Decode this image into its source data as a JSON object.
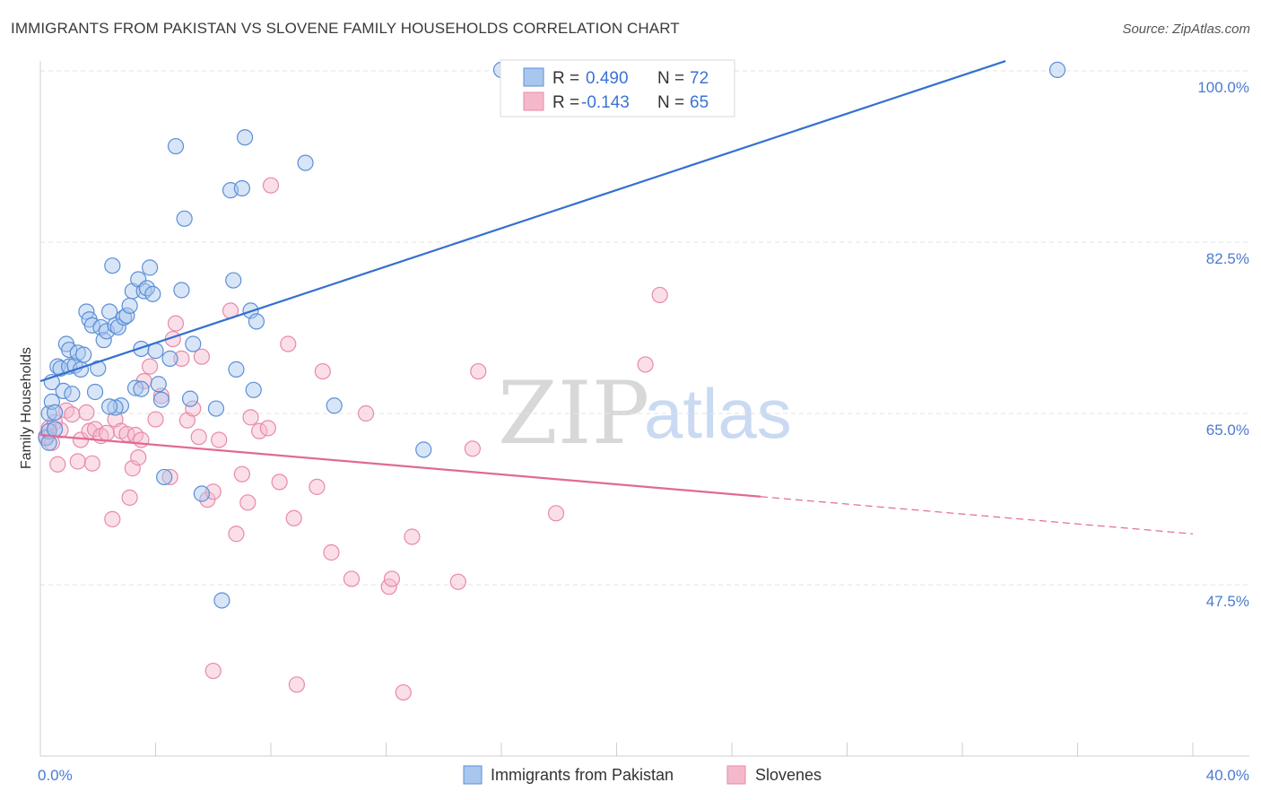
{
  "title": "IMMIGRANTS FROM PAKISTAN VS SLOVENE FAMILY HOUSEHOLDS CORRELATION CHART",
  "source": "Source: ZipAtlas.com",
  "watermark": {
    "zip": "ZIP",
    "atlas": "atlas"
  },
  "colors": {
    "blue_fill": "#a9c6ee",
    "blue_stroke": "#5b8fd8",
    "blue_line": "#3370d0",
    "pink_fill": "#f5b8cb",
    "pink_stroke": "#e88aa8",
    "pink_line": "#e06a94",
    "tick_text": "#4a7bd0",
    "grid": "#e3e3e3"
  },
  "legend": {
    "rows": [
      {
        "r_label": "R =",
        "r_value": "0.490",
        "n_label": "N =",
        "n_value": "72"
      },
      {
        "r_label": "R =",
        "r_value": "-0.143",
        "n_label": "N =",
        "n_value": "65"
      }
    ]
  },
  "bottom_legend": [
    "Immigrants from Pakistan",
    "Slovenes"
  ],
  "chart_data": {
    "type": "scatter",
    "xlabel": "",
    "ylabel": "Family Households",
    "xlim": [
      0,
      40
    ],
    "ylim": [
      33,
      102
    ],
    "x_tick_labels": [
      "0.0%",
      "40.0%"
    ],
    "y_ticks": [
      47.5,
      65.0,
      82.5,
      100.0
    ],
    "y_tick_labels": [
      "47.5%",
      "65.0%",
      "82.5%",
      "100.0%"
    ],
    "grid": true,
    "series": [
      {
        "name": "Immigrants from Pakistan",
        "r": 0.49,
        "n": 72,
        "trend": {
          "x": [
            0.0,
            33.5
          ],
          "y": [
            68.3,
            101.0
          ]
        },
        "points": [
          [
            0.2,
            62.5
          ],
          [
            0.3,
            63.2
          ],
          [
            0.3,
            65.0
          ],
          [
            0.4,
            66.2
          ],
          [
            0.4,
            68.2
          ],
          [
            0.5,
            63.4
          ],
          [
            0.6,
            69.8
          ],
          [
            0.7,
            69.6
          ],
          [
            0.8,
            67.3
          ],
          [
            0.9,
            72.1
          ],
          [
            1.0,
            71.5
          ],
          [
            1.0,
            69.8
          ],
          [
            1.1,
            67.0
          ],
          [
            1.2,
            69.9
          ],
          [
            1.3,
            71.2
          ],
          [
            1.4,
            69.5
          ],
          [
            1.5,
            71.0
          ],
          [
            1.6,
            75.4
          ],
          [
            1.7,
            74.6
          ],
          [
            1.8,
            74.0
          ],
          [
            1.9,
            67.2
          ],
          [
            2.0,
            69.6
          ],
          [
            2.1,
            73.8
          ],
          [
            2.2,
            72.5
          ],
          [
            2.3,
            73.4
          ],
          [
            2.4,
            75.4
          ],
          [
            2.5,
            80.1
          ],
          [
            2.6,
            74.0
          ],
          [
            2.7,
            73.8
          ],
          [
            2.8,
            65.8
          ],
          [
            2.6,
            65.6
          ],
          [
            2.9,
            74.8
          ],
          [
            3.0,
            75.0
          ],
          [
            3.1,
            76.0
          ],
          [
            3.2,
            77.5
          ],
          [
            3.3,
            67.6
          ],
          [
            3.4,
            78.7
          ],
          [
            3.5,
            71.6
          ],
          [
            3.5,
            67.5
          ],
          [
            3.6,
            77.5
          ],
          [
            3.7,
            77.8
          ],
          [
            3.8,
            79.9
          ],
          [
            3.9,
            77.2
          ],
          [
            4.0,
            71.4
          ],
          [
            4.1,
            68.0
          ],
          [
            4.2,
            66.4
          ],
          [
            4.3,
            58.5
          ],
          [
            4.5,
            70.6
          ],
          [
            4.7,
            92.3
          ],
          [
            4.9,
            77.6
          ],
          [
            5.0,
            84.9
          ],
          [
            5.2,
            66.5
          ],
          [
            5.3,
            72.1
          ],
          [
            5.6,
            56.8
          ],
          [
            6.3,
            45.9
          ],
          [
            6.6,
            87.8
          ],
          [
            6.7,
            78.6
          ],
          [
            6.8,
            69.5
          ],
          [
            7.0,
            88.0
          ],
          [
            7.1,
            93.2
          ],
          [
            7.3,
            75.5
          ],
          [
            7.4,
            67.4
          ],
          [
            7.5,
            74.4
          ],
          [
            9.2,
            90.6
          ],
          [
            10.2,
            65.8
          ],
          [
            13.3,
            61.3
          ],
          [
            16.0,
            100.1
          ],
          [
            35.3,
            100.1
          ],
          [
            0.3,
            62.0
          ],
          [
            0.5,
            65.1
          ],
          [
            2.4,
            65.7
          ],
          [
            6.1,
            65.5
          ]
        ]
      },
      {
        "name": "Slovenes",
        "r": -0.143,
        "n": 65,
        "trend": {
          "x": [
            0.0,
            25.0
          ],
          "y": [
            62.8,
            56.5
          ]
        },
        "trend_dashed": {
          "x": [
            25.0,
            40.0
          ],
          "y": [
            56.5,
            52.7
          ]
        },
        "points": [
          [
            0.2,
            62.7
          ],
          [
            0.3,
            63.5
          ],
          [
            0.4,
            62.0
          ],
          [
            0.5,
            64.1
          ],
          [
            0.6,
            59.8
          ],
          [
            0.7,
            63.3
          ],
          [
            0.9,
            65.3
          ],
          [
            1.1,
            64.9
          ],
          [
            1.3,
            60.1
          ],
          [
            1.4,
            62.3
          ],
          [
            1.6,
            65.1
          ],
          [
            1.7,
            63.2
          ],
          [
            1.8,
            59.9
          ],
          [
            1.9,
            63.4
          ],
          [
            2.1,
            62.7
          ],
          [
            2.3,
            63.0
          ],
          [
            2.5,
            54.2
          ],
          [
            2.6,
            64.4
          ],
          [
            2.8,
            63.2
          ],
          [
            3.0,
            62.9
          ],
          [
            3.1,
            56.4
          ],
          [
            3.2,
            59.4
          ],
          [
            3.3,
            62.8
          ],
          [
            3.4,
            60.5
          ],
          [
            3.5,
            62.3
          ],
          [
            3.6,
            68.3
          ],
          [
            3.8,
            69.8
          ],
          [
            4.0,
            64.4
          ],
          [
            4.2,
            66.8
          ],
          [
            4.5,
            58.5
          ],
          [
            4.6,
            72.6
          ],
          [
            4.7,
            74.2
          ],
          [
            4.9,
            70.6
          ],
          [
            5.1,
            64.3
          ],
          [
            5.3,
            65.5
          ],
          [
            5.5,
            62.6
          ],
          [
            5.6,
            70.8
          ],
          [
            5.8,
            56.2
          ],
          [
            6.0,
            57.0
          ],
          [
            6.2,
            62.3
          ],
          [
            6.6,
            75.5
          ],
          [
            6.8,
            52.7
          ],
          [
            7.0,
            58.8
          ],
          [
            7.2,
            55.9
          ],
          [
            7.3,
            64.6
          ],
          [
            7.6,
            63.2
          ],
          [
            7.9,
            63.5
          ],
          [
            8.0,
            88.3
          ],
          [
            8.3,
            58.0
          ],
          [
            8.6,
            72.1
          ],
          [
            8.8,
            54.3
          ],
          [
            9.6,
            57.5
          ],
          [
            9.8,
            69.3
          ],
          [
            10.1,
            50.8
          ],
          [
            10.8,
            48.1
          ],
          [
            11.3,
            65.0
          ],
          [
            12.1,
            47.3
          ],
          [
            12.2,
            48.1
          ],
          [
            12.9,
            52.4
          ],
          [
            14.5,
            47.8
          ],
          [
            15.0,
            61.4
          ],
          [
            15.2,
            69.3
          ],
          [
            17.9,
            54.8
          ],
          [
            21.0,
            70.0
          ],
          [
            21.5,
            77.1
          ]
        ],
        "low_points": [
          [
            6.0,
            38.7
          ],
          [
            8.9,
            37.3
          ],
          [
            12.6,
            36.5
          ]
        ]
      }
    ]
  }
}
